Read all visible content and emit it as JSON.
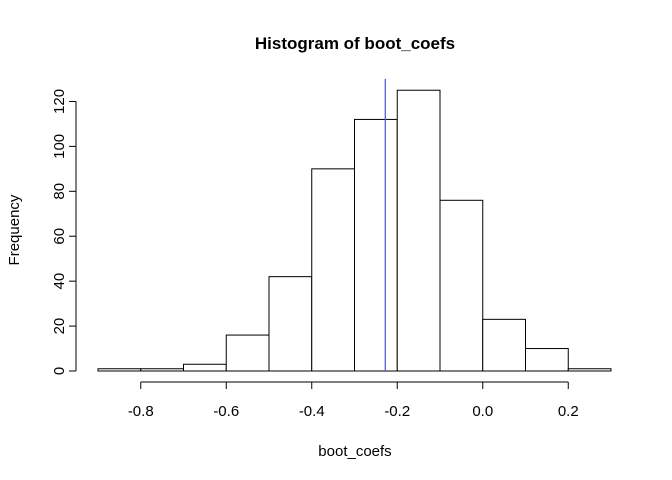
{
  "chart_data": {
    "type": "bar",
    "title": "Histogram of boot_coefs",
    "xlabel": "boot_coefs",
    "ylabel": "Frequency",
    "bins": [
      {
        "from": -0.9,
        "to": -0.8,
        "count": 1
      },
      {
        "from": -0.8,
        "to": -0.7,
        "count": 1
      },
      {
        "from": -0.7,
        "to": -0.6,
        "count": 3
      },
      {
        "from": -0.6,
        "to": -0.5,
        "count": 16
      },
      {
        "from": -0.5,
        "to": -0.4,
        "count": 42
      },
      {
        "from": -0.4,
        "to": -0.3,
        "count": 90
      },
      {
        "from": -0.3,
        "to": -0.2,
        "count": 112
      },
      {
        "from": -0.2,
        "to": -0.1,
        "count": 125
      },
      {
        "from": -0.1,
        "to": 0.0,
        "count": 76
      },
      {
        "from": 0.0,
        "to": 0.1,
        "count": 23
      },
      {
        "from": 0.1,
        "to": 0.2,
        "count": 10
      },
      {
        "from": 0.2,
        "to": 0.3,
        "count": 1
      }
    ],
    "xlim": [
      -0.9,
      0.3
    ],
    "ylim": [
      0,
      130
    ],
    "x_ticks": [
      -0.8,
      -0.6,
      -0.4,
      -0.2,
      0.0,
      0.2
    ],
    "x_tick_labels": [
      "-0.8",
      "-0.6",
      "-0.4",
      "-0.2",
      "0.0",
      "0.2"
    ],
    "y_ticks": [
      0,
      20,
      40,
      60,
      80,
      100,
      120
    ],
    "y_tick_labels": [
      "0",
      "20",
      "40",
      "60",
      "80",
      "100",
      "120"
    ],
    "vline": {
      "x": -0.228,
      "color": "#4b4bd6"
    },
    "bar_fill": "#ffffff",
    "bar_stroke": "#000000",
    "grid": false
  }
}
